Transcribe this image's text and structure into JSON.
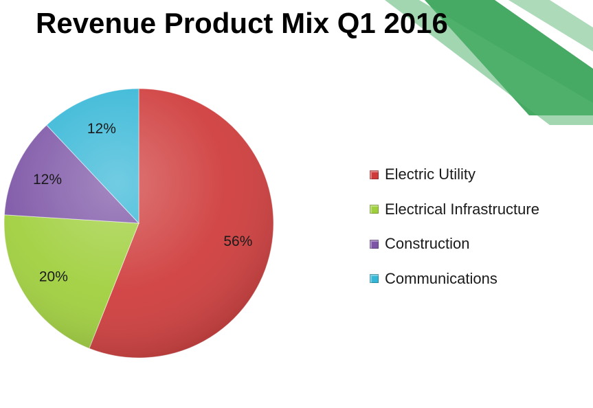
{
  "slide": {
    "title": "Revenue Product Mix Q1 2016"
  },
  "colors": {
    "decor_dark": "#2e9e4f",
    "decor_light": "#9fd4ad"
  },
  "chart_data": {
    "type": "pie",
    "title": "Revenue Product Mix Q1 2016",
    "legend_position": "right",
    "value_format": "percent",
    "slices": [
      {
        "name": "Electric Utility",
        "value": 56,
        "label": "56%",
        "color": "#cf3b3b"
      },
      {
        "name": "Electrical Infrastructure",
        "value": 20,
        "label": "20%",
        "color": "#9fcf3c"
      },
      {
        "name": "Construction",
        "value": 12,
        "label": "12%",
        "color": "#7d55a6"
      },
      {
        "name": "Communications",
        "value": 12,
        "label": "12%",
        "color": "#34b6d6"
      }
    ]
  }
}
